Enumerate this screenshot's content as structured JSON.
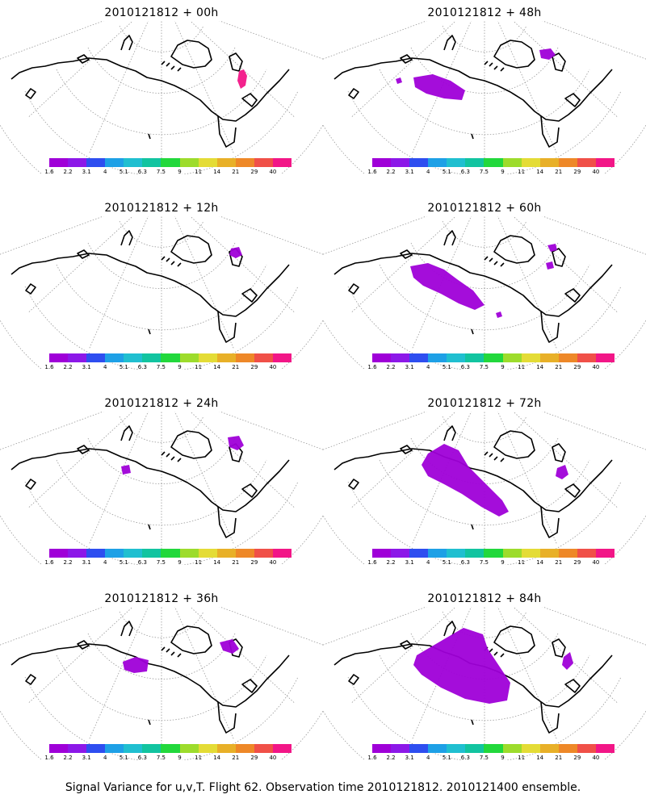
{
  "palette": [
    "#9f00d8",
    "#8c18e8",
    "#2e4ef0",
    "#1ea0e6",
    "#20bfd0",
    "#12c4a0",
    "#22d83c",
    "#9ddc2c",
    "#e4dc36",
    "#e8b028",
    "#ee8828",
    "#f05048",
    "#f21687"
  ],
  "colorbar_labels": [
    "1.6",
    "2.2",
    "3.1",
    "4",
    "5.1",
    "6.3",
    "7.5",
    "9",
    "11",
    "14",
    "21",
    "29",
    "40"
  ],
  "panels": [
    {
      "title": "2010121812 + 00h"
    },
    {
      "title": "2010121812 + 48h"
    },
    {
      "title": "2010121812 + 12h"
    },
    {
      "title": "2010121812 + 60h"
    },
    {
      "title": "2010121812 + 24h"
    },
    {
      "title": "2010121812 + 72h"
    },
    {
      "title": "2010121812 + 36h"
    },
    {
      "title": "2010121812 + 84h"
    }
  ],
  "footer": "Signal Variance for u,v,T. Flight 62. Observation time 2010121812. 2010121400 ensemble."
}
